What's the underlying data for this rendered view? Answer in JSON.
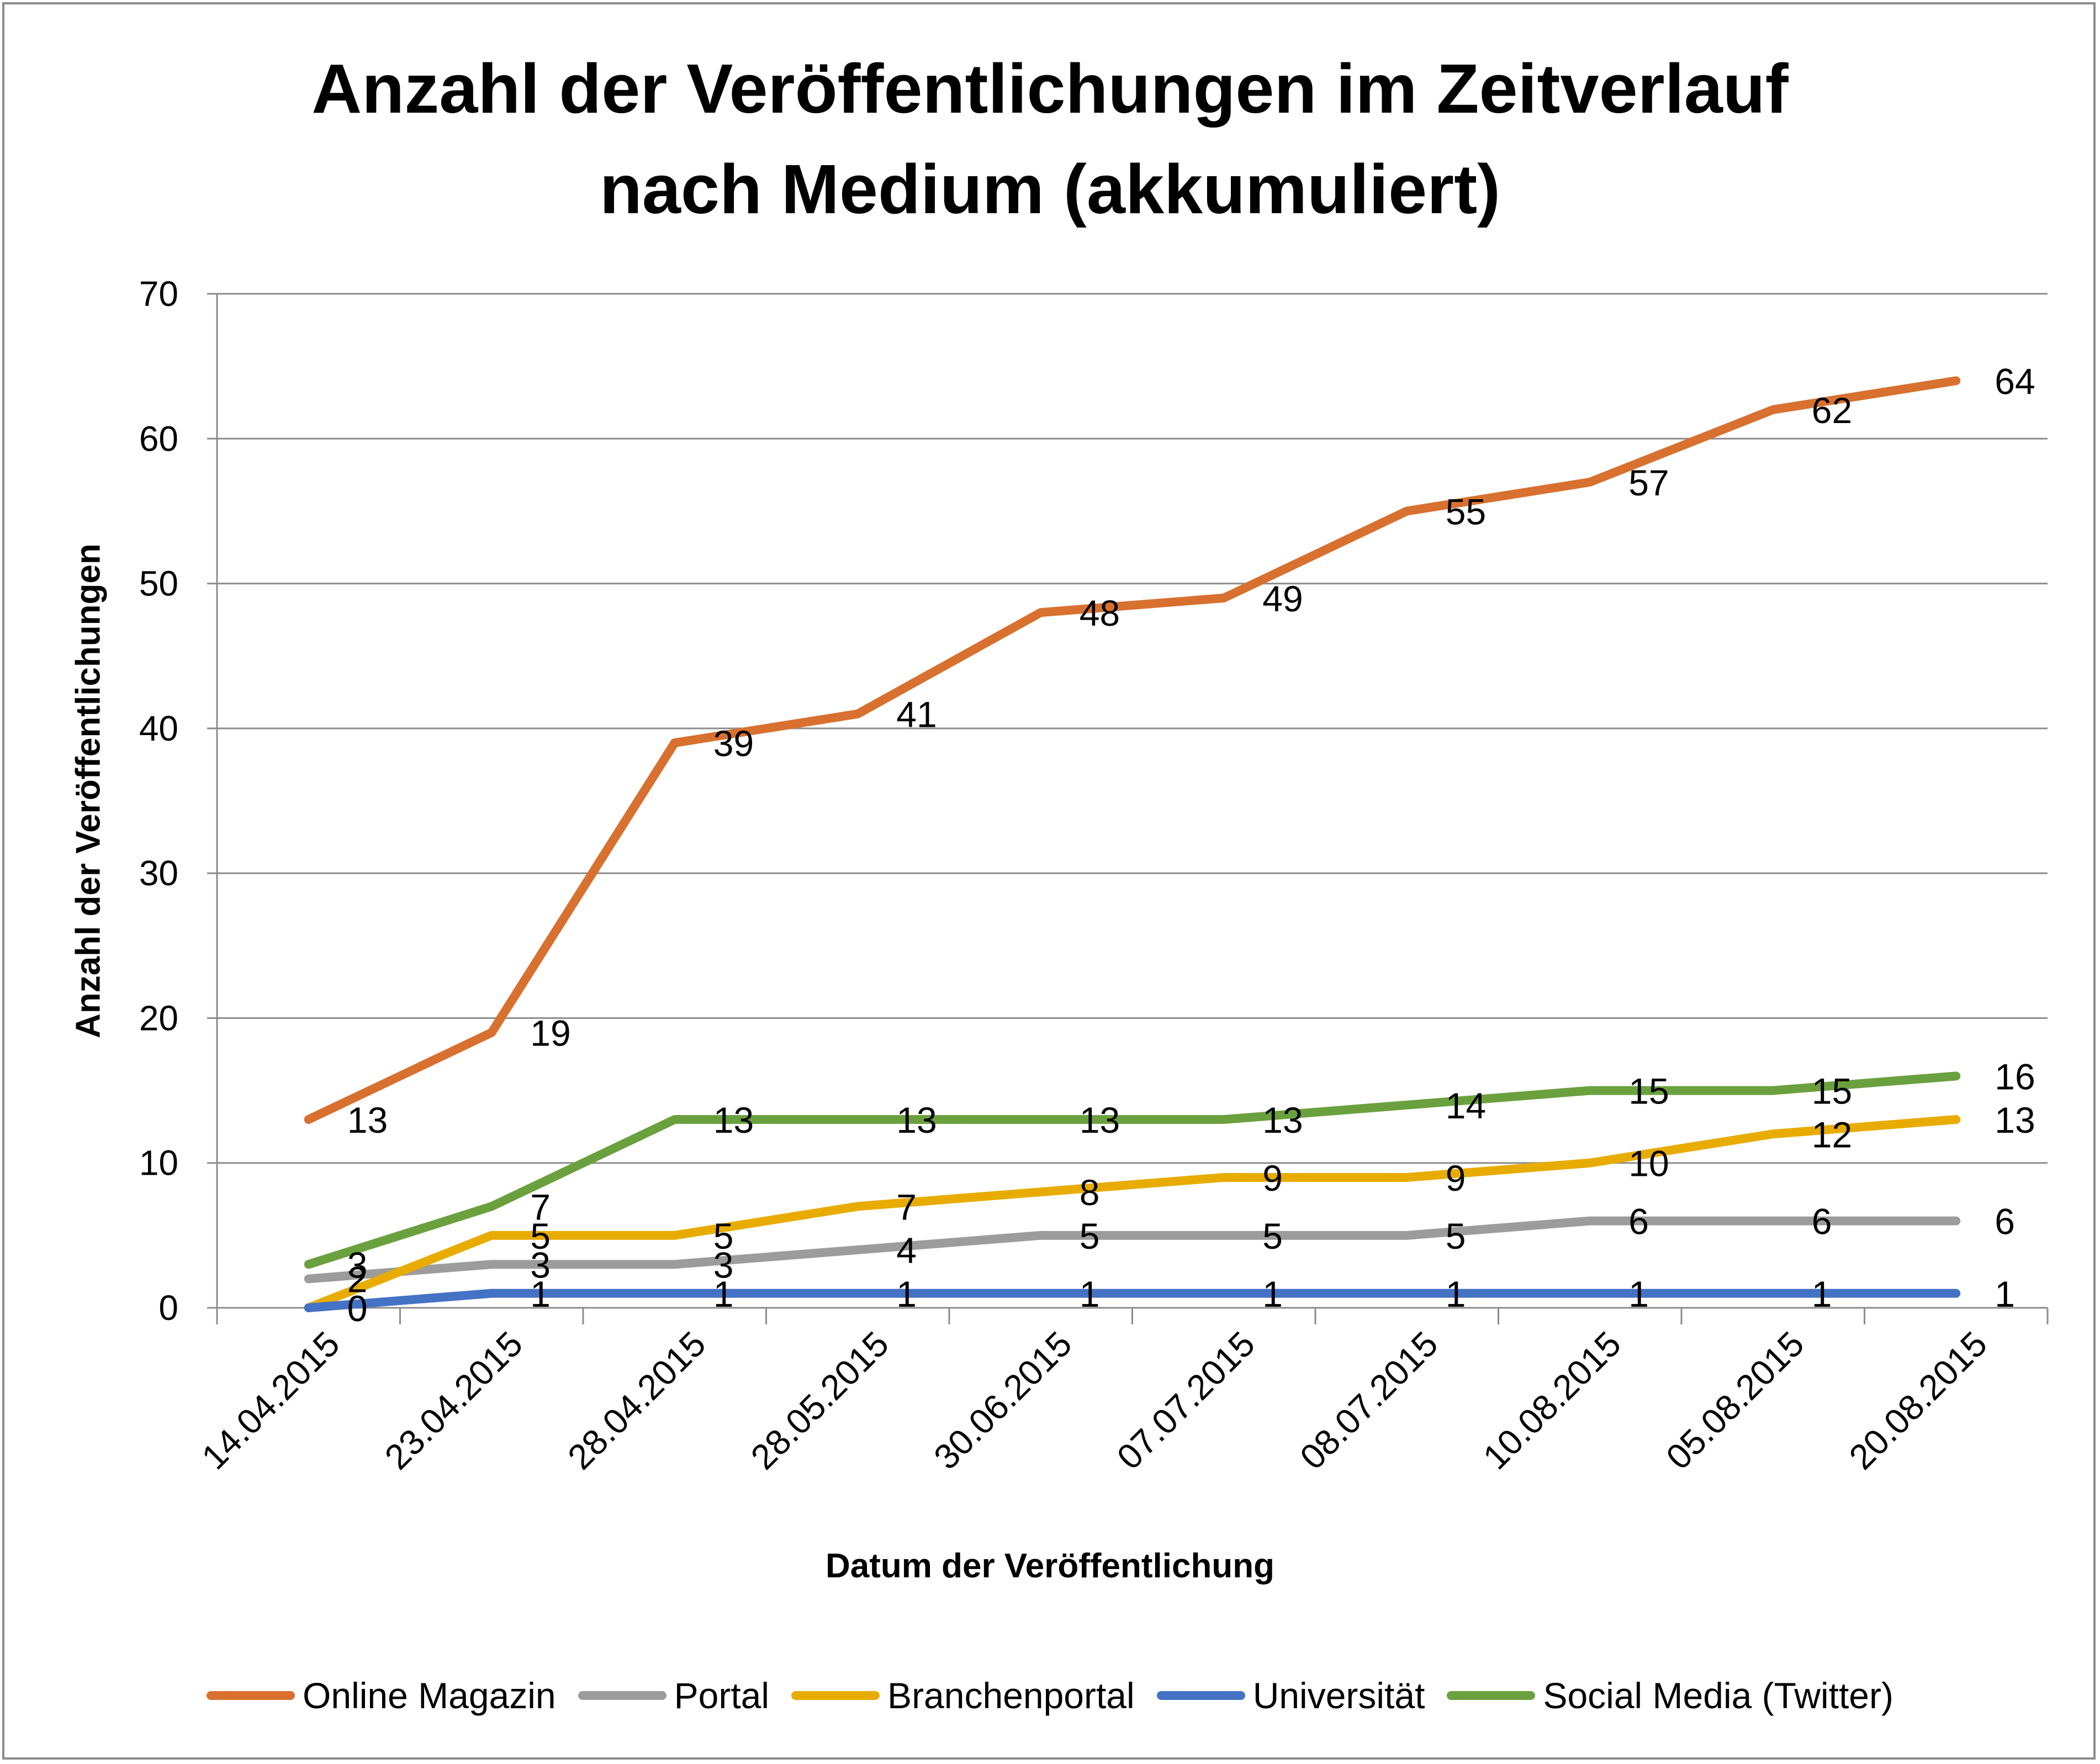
{
  "chart_data": {
    "type": "line",
    "title": "Anzahl der Veröffentlichungen im Zeitverlauf nach Medium (akkumuliert)",
    "title_lines": [
      "Anzahl der Veröffentlichungen im Zeitverlauf",
      "nach Medium (akkumuliert)"
    ],
    "xlabel": "Datum der Veröffentlichung",
    "ylabel": "Anzahl der Veröffentlichungen",
    "ylim": [
      0,
      70
    ],
    "yticks": [
      0,
      10,
      20,
      30,
      40,
      50,
      60,
      70
    ],
    "grid": true,
    "legend_position": "bottom",
    "categories": [
      "14.04.2015",
      "23.04.2015",
      "28.04.2015",
      "28.05.2015",
      "30.06.2015",
      "07.07.2015",
      "08.07.2015",
      "10.08.2015",
      "05.08.2015",
      "20.08.2015"
    ],
    "series": [
      {
        "name": "Online Magazin",
        "color": "#d8702f",
        "values": [
          13,
          19,
          39,
          41,
          48,
          49,
          55,
          57,
          62,
          64
        ]
      },
      {
        "name": "Portal",
        "color": "#9c9c9c",
        "values": [
          2,
          3,
          3,
          4,
          5,
          5,
          5,
          6,
          6,
          6
        ]
      },
      {
        "name": "Branchenportal",
        "color": "#e8ac00",
        "values": [
          0,
          5,
          5,
          7,
          8,
          9,
          9,
          10,
          12,
          13
        ]
      },
      {
        "name": "Universität",
        "color": "#4472c4",
        "values": [
          0,
          1,
          1,
          1,
          1,
          1,
          1,
          1,
          1,
          1
        ]
      },
      {
        "name": "Social Media (Twitter)",
        "color": "#6aa13e",
        "values": [
          3,
          7,
          13,
          13,
          13,
          13,
          14,
          15,
          15,
          16
        ]
      }
    ]
  }
}
